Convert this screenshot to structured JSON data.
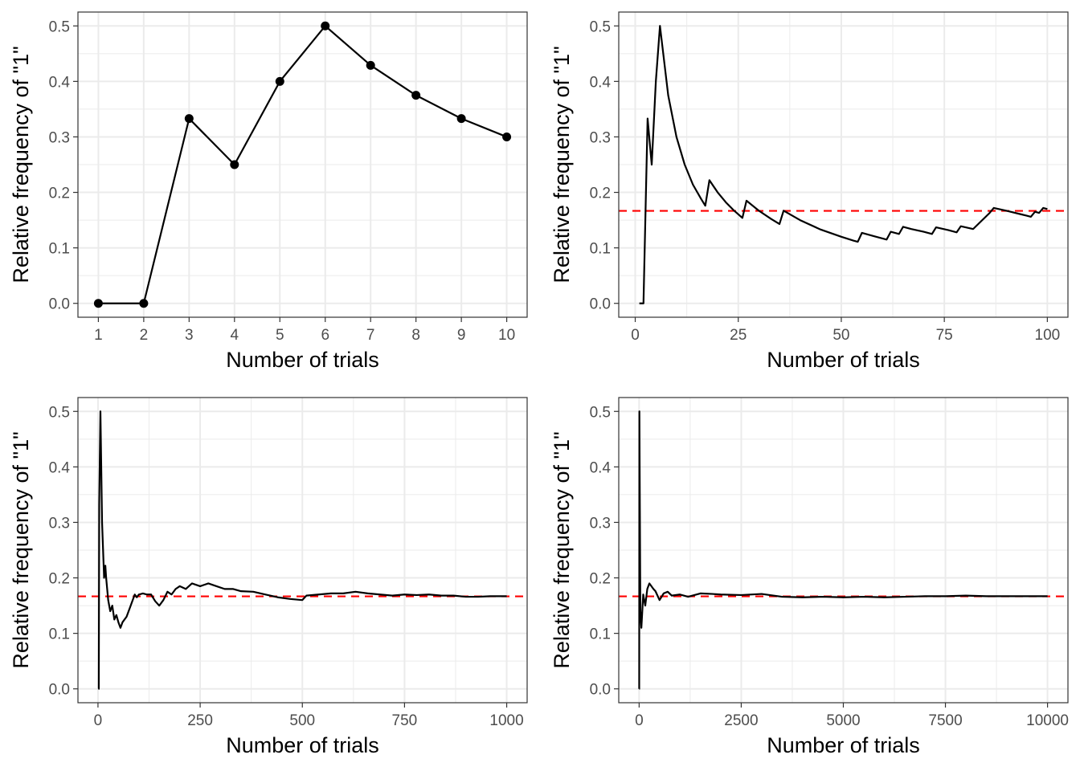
{
  "chart_data": [
    {
      "type": "line",
      "markers": true,
      "xlabel": "Number of trials",
      "ylabel": "Relative frequency of \"1\"",
      "x_ticks": [
        1,
        2,
        3,
        4,
        5,
        6,
        7,
        8,
        9,
        10
      ],
      "y_ticks": [
        "0.0",
        "0.1",
        "0.2",
        "0.3",
        "0.4",
        "0.5"
      ],
      "xlim": [
        0.55,
        10.45
      ],
      "ylim": [
        -0.025,
        0.525
      ],
      "grid": true,
      "reference_line": null,
      "x": [
        1,
        2,
        3,
        4,
        5,
        6,
        7,
        8,
        9,
        10
      ],
      "y": [
        0,
        0,
        0.333,
        0.25,
        0.4,
        0.5,
        0.429,
        0.375,
        0.333,
        0.3
      ]
    },
    {
      "type": "line",
      "markers": false,
      "xlabel": "Number of trials",
      "ylabel": "Relative frequency of \"1\"",
      "x_ticks": [
        0,
        25,
        50,
        75,
        100
      ],
      "y_ticks": [
        "0.0",
        "0.1",
        "0.2",
        "0.3",
        "0.4",
        "0.5"
      ],
      "xlim": [
        -4,
        105
      ],
      "ylim": [
        -0.025,
        0.525
      ],
      "grid": true,
      "reference_line": 0.1667,
      "x": [
        1,
        2,
        3,
        4,
        5,
        6,
        8,
        10,
        12,
        14,
        16,
        17,
        18,
        20,
        22,
        24,
        26,
        27,
        30,
        33,
        35,
        36,
        40,
        45,
        50,
        53,
        54,
        55,
        58,
        61,
        62,
        63,
        64,
        65,
        66,
        67,
        70,
        72,
        73,
        76,
        78,
        79,
        82,
        86,
        87,
        90,
        95,
        96,
        97,
        98,
        99,
        100
      ],
      "y": [
        0,
        0,
        0.333,
        0.25,
        0.4,
        0.5,
        0.375,
        0.3,
        0.25,
        0.214,
        0.188,
        0.176,
        0.222,
        0.2,
        0.182,
        0.167,
        0.154,
        0.185,
        0.167,
        0.152,
        0.143,
        0.167,
        0.15,
        0.133,
        0.12,
        0.113,
        0.111,
        0.127,
        0.121,
        0.115,
        0.129,
        0.127,
        0.125,
        0.138,
        0.136,
        0.134,
        0.129,
        0.125,
        0.137,
        0.132,
        0.128,
        0.139,
        0.134,
        0.163,
        0.172,
        0.167,
        0.158,
        0.156,
        0.165,
        0.163,
        0.172,
        0.17
      ]
    },
    {
      "type": "line",
      "markers": false,
      "xlabel": "Number of trials",
      "ylabel": "Relative frequency of \"1\"",
      "x_ticks": [
        0,
        250,
        500,
        750,
        1000
      ],
      "y_ticks": [
        "0.0",
        "0.1",
        "0.2",
        "0.3",
        "0.4",
        "0.5"
      ],
      "xlim": [
        -49,
        1050
      ],
      "ylim": [
        -0.025,
        0.525
      ],
      "grid": true,
      "reference_line": 0.1667,
      "x": [
        1,
        2,
        3,
        6,
        10,
        15,
        18,
        20,
        25,
        30,
        35,
        40,
        45,
        50,
        55,
        60,
        70,
        80,
        90,
        95,
        100,
        110,
        120,
        130,
        140,
        150,
        160,
        170,
        180,
        190,
        200,
        215,
        230,
        250,
        270,
        290,
        310,
        330,
        350,
        380,
        410,
        440,
        470,
        500,
        510,
        540,
        570,
        600,
        630,
        660,
        690,
        720,
        750,
        780,
        810,
        840,
        870,
        900,
        930,
        960,
        1000
      ],
      "y": [
        0,
        0,
        0.333,
        0.5,
        0.3,
        0.2,
        0.222,
        0.2,
        0.16,
        0.14,
        0.15,
        0.125,
        0.133,
        0.12,
        0.11,
        0.12,
        0.13,
        0.15,
        0.17,
        0.165,
        0.17,
        0.172,
        0.17,
        0.17,
        0.158,
        0.15,
        0.16,
        0.175,
        0.17,
        0.18,
        0.185,
        0.18,
        0.19,
        0.185,
        0.19,
        0.185,
        0.18,
        0.18,
        0.176,
        0.175,
        0.17,
        0.165,
        0.162,
        0.16,
        0.168,
        0.17,
        0.172,
        0.172,
        0.175,
        0.172,
        0.17,
        0.168,
        0.17,
        0.169,
        0.17,
        0.168,
        0.168,
        0.166,
        0.166,
        0.167,
        0.167
      ]
    },
    {
      "type": "line",
      "markers": false,
      "xlabel": "Number of trials",
      "ylabel": "Relative frequency of \"1\"",
      "x_ticks": [
        0,
        2500,
        5000,
        7500,
        10000
      ],
      "y_ticks": [
        "0.0",
        "0.1",
        "0.2",
        "0.3",
        "0.4",
        "0.5"
      ],
      "xlim": [
        -499,
        10500
      ],
      "ylim": [
        -0.025,
        0.525
      ],
      "grid": true,
      "reference_line": 0.1667,
      "x": [
        1,
        2,
        6,
        30,
        55,
        100,
        150,
        200,
        250,
        300,
        350,
        400,
        500,
        600,
        700,
        800,
        1000,
        1200,
        1500,
        1800,
        2000,
        2500,
        3000,
        3500,
        4000,
        4500,
        5000,
        5500,
        6000,
        6500,
        7000,
        7500,
        8000,
        8500,
        9000,
        9500,
        10000
      ],
      "y": [
        0,
        0,
        0.5,
        0.14,
        0.11,
        0.17,
        0.15,
        0.18,
        0.19,
        0.185,
        0.18,
        0.176,
        0.16,
        0.172,
        0.175,
        0.168,
        0.17,
        0.166,
        0.172,
        0.171,
        0.17,
        0.169,
        0.171,
        0.166,
        0.165,
        0.166,
        0.165,
        0.166,
        0.165,
        0.166,
        0.167,
        0.167,
        0.168,
        0.167,
        0.167,
        0.167,
        0.167
      ]
    }
  ]
}
